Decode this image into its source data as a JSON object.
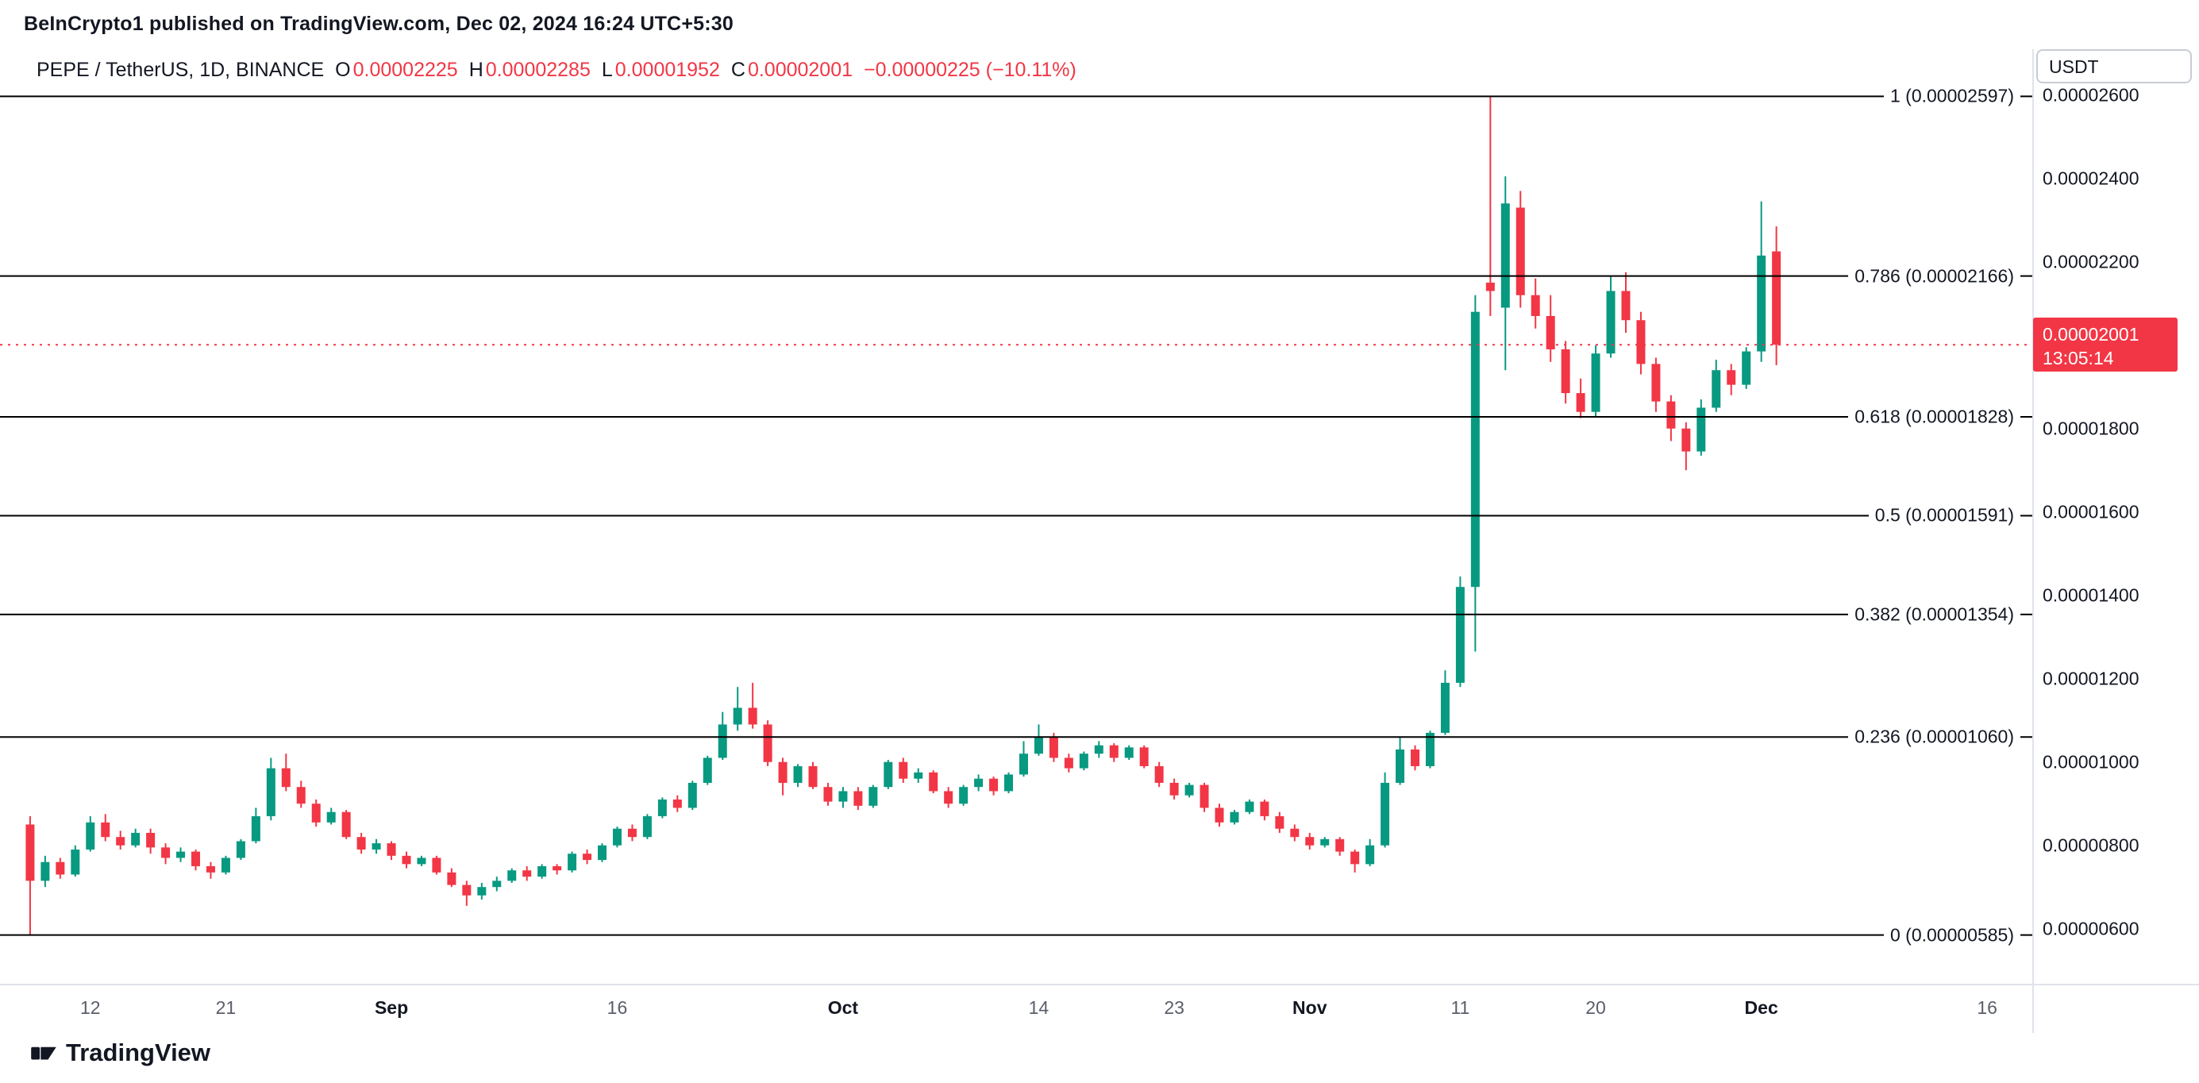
{
  "header": {
    "attribution": "BeInCrypto1 published on TradingView.com, Dec 02, 2024 16:24 UTC+5:30"
  },
  "legend": {
    "title": "PEPE / TetherUS, 1D, BINANCE",
    "open_label": "O",
    "open": "0.00002225",
    "high_label": "H",
    "high": "0.00002285",
    "low_label": "L",
    "low": "0.00001952",
    "close_label": "C",
    "close": "0.00002001",
    "change": "−0.00000225 (−10.11%)"
  },
  "price_axis": {
    "currency": "USDT"
  },
  "current_price": {
    "price": "0.00002001",
    "countdown": "13:05:14",
    "value": 2001
  },
  "logo": {
    "text": "TradingView"
  },
  "colors": {
    "up": "#089981",
    "down": "#F23645",
    "fib_line": "#000000",
    "axis_border": "#E0E3EB",
    "text": "#131722"
  },
  "chart_data": {
    "type": "candlestick",
    "symbol": "PEPE / TetherUS",
    "interval": "1D",
    "exchange": "BINANCE",
    "unit": 1e-08,
    "y_min": 468,
    "y_max": 2710,
    "x_slots": 135,
    "x_offset": 2,
    "y_ticks": [
      {
        "value": 2600,
        "label": "0.00002600"
      },
      {
        "value": 2400,
        "label": "0.00002400"
      },
      {
        "value": 2200,
        "label": "0.00002200"
      },
      {
        "value": 2000,
        "label": "0.00002000"
      },
      {
        "value": 1800,
        "label": "0.00001800"
      },
      {
        "value": 1600,
        "label": "0.00001600"
      },
      {
        "value": 1400,
        "label": "0.00001400"
      },
      {
        "value": 1200,
        "label": "0.00001200"
      },
      {
        "value": 1000,
        "label": "0.00001000"
      },
      {
        "value": 800,
        "label": "0.00000800"
      },
      {
        "value": 600,
        "label": "0.00000600"
      }
    ],
    "fib_levels": [
      {
        "ratio": "1",
        "price": 2597,
        "label": "1 (0.00002597)"
      },
      {
        "ratio": "0.786",
        "price": 2166,
        "label": "0.786 (0.00002166)"
      },
      {
        "ratio": "0.618",
        "price": 1828,
        "label": "0.618 (0.00001828)"
      },
      {
        "ratio": "0.5",
        "price": 1591,
        "label": "0.5 (0.00001591)"
      },
      {
        "ratio": "0.382",
        "price": 1354,
        "label": "0.382 (0.00001354)"
      },
      {
        "ratio": "0.236",
        "price": 1060,
        "label": "0.236 (0.00001060)"
      },
      {
        "ratio": "0",
        "price": 585,
        "label": "0 (0.00000585)"
      }
    ],
    "x_labels": [
      {
        "label": "12",
        "day": 4
      },
      {
        "label": "21",
        "day": 13
      },
      {
        "label": "Sep",
        "day": 24,
        "bold": true
      },
      {
        "label": "16",
        "day": 39
      },
      {
        "label": "Oct",
        "day": 54,
        "bold": true
      },
      {
        "label": "14",
        "day": 67
      },
      {
        "label": "23",
        "day": 76
      },
      {
        "label": "Nov",
        "day": 85,
        "bold": true
      },
      {
        "label": "11",
        "day": 95
      },
      {
        "label": "20",
        "day": 104
      },
      {
        "label": "Dec",
        "day": 115,
        "bold": true
      },
      {
        "label": "16",
        "day": 130
      }
    ],
    "candles": [
      [
        850,
        870,
        585,
        715
      ],
      [
        715,
        775,
        700,
        760
      ],
      [
        760,
        770,
        720,
        730
      ],
      [
        730,
        800,
        725,
        790
      ],
      [
        790,
        870,
        785,
        855
      ],
      [
        855,
        875,
        810,
        820
      ],
      [
        820,
        835,
        790,
        800
      ],
      [
        800,
        840,
        795,
        830
      ],
      [
        830,
        840,
        780,
        795
      ],
      [
        795,
        805,
        755,
        770
      ],
      [
        770,
        795,
        760,
        785
      ],
      [
        785,
        790,
        740,
        750
      ],
      [
        750,
        760,
        720,
        735
      ],
      [
        735,
        775,
        730,
        770
      ],
      [
        770,
        815,
        765,
        810
      ],
      [
        810,
        890,
        805,
        870
      ],
      [
        870,
        1010,
        860,
        985
      ],
      [
        985,
        1020,
        930,
        940
      ],
      [
        940,
        955,
        890,
        900
      ],
      [
        900,
        910,
        845,
        855
      ],
      [
        855,
        890,
        850,
        880
      ],
      [
        880,
        885,
        815,
        820
      ],
      [
        820,
        830,
        780,
        790
      ],
      [
        790,
        815,
        780,
        805
      ],
      [
        805,
        810,
        765,
        775
      ],
      [
        775,
        785,
        745,
        755
      ],
      [
        755,
        775,
        750,
        770
      ],
      [
        770,
        775,
        730,
        735
      ],
      [
        735,
        745,
        700,
        705
      ],
      [
        705,
        715,
        655,
        680
      ],
      [
        680,
        710,
        670,
        700
      ],
      [
        700,
        725,
        690,
        715
      ],
      [
        715,
        745,
        710,
        740
      ],
      [
        740,
        750,
        715,
        725
      ],
      [
        725,
        755,
        720,
        750
      ],
      [
        750,
        755,
        730,
        740
      ],
      [
        740,
        785,
        735,
        780
      ],
      [
        780,
        790,
        755,
        765
      ],
      [
        765,
        805,
        760,
        800
      ],
      [
        800,
        845,
        795,
        840
      ],
      [
        840,
        850,
        810,
        820
      ],
      [
        820,
        875,
        815,
        870
      ],
      [
        870,
        915,
        865,
        910
      ],
      [
        910,
        920,
        880,
        890
      ],
      [
        890,
        955,
        885,
        950
      ],
      [
        950,
        1015,
        945,
        1010
      ],
      [
        1010,
        1120,
        1005,
        1090
      ],
      [
        1090,
        1180,
        1075,
        1130
      ],
      [
        1130,
        1190,
        1080,
        1090
      ],
      [
        1090,
        1100,
        990,
        1000
      ],
      [
        1000,
        1010,
        920,
        950
      ],
      [
        950,
        995,
        940,
        990
      ],
      [
        990,
        1000,
        935,
        940
      ],
      [
        940,
        950,
        895,
        905
      ],
      [
        905,
        940,
        890,
        930
      ],
      [
        930,
        940,
        885,
        895
      ],
      [
        895,
        945,
        890,
        940
      ],
      [
        940,
        1005,
        935,
        1000
      ],
      [
        1000,
        1010,
        950,
        960
      ],
      [
        960,
        985,
        950,
        975
      ],
      [
        975,
        980,
        925,
        930
      ],
      [
        930,
        940,
        890,
        900
      ],
      [
        900,
        945,
        895,
        940
      ],
      [
        940,
        970,
        930,
        960
      ],
      [
        960,
        965,
        920,
        930
      ],
      [
        930,
        975,
        925,
        970
      ],
      [
        970,
        1050,
        965,
        1020
      ],
      [
        1020,
        1090,
        1015,
        1060
      ],
      [
        1060,
        1070,
        1000,
        1010
      ],
      [
        1010,
        1020,
        975,
        985
      ],
      [
        985,
        1025,
        980,
        1020
      ],
      [
        1020,
        1050,
        1010,
        1040
      ],
      [
        1040,
        1045,
        1000,
        1010
      ],
      [
        1010,
        1040,
        1005,
        1035
      ],
      [
        1035,
        1040,
        985,
        990
      ],
      [
        990,
        1000,
        940,
        950
      ],
      [
        950,
        960,
        910,
        920
      ],
      [
        920,
        950,
        915,
        945
      ],
      [
        945,
        950,
        880,
        890
      ],
      [
        890,
        900,
        845,
        855
      ],
      [
        855,
        885,
        850,
        880
      ],
      [
        880,
        910,
        875,
        905
      ],
      [
        905,
        910,
        860,
        870
      ],
      [
        870,
        880,
        830,
        840
      ],
      [
        840,
        850,
        810,
        820
      ],
      [
        820,
        830,
        790,
        800
      ],
      [
        800,
        820,
        795,
        815
      ],
      [
        815,
        820,
        775,
        785
      ],
      [
        785,
        790,
        735,
        755
      ],
      [
        755,
        815,
        750,
        800
      ],
      [
        800,
        975,
        795,
        950
      ],
      [
        950,
        1060,
        945,
        1030
      ],
      [
        1030,
        1040,
        980,
        990
      ],
      [
        990,
        1075,
        985,
        1070
      ],
      [
        1070,
        1220,
        1065,
        1190
      ],
      [
        1190,
        1445,
        1180,
        1420
      ],
      [
        1420,
        2120,
        1265,
        2080
      ],
      [
        2150,
        2597,
        2070,
        2130
      ],
      [
        2090,
        2405,
        1940,
        2340
      ],
      [
        2330,
        2370,
        2090,
        2120
      ],
      [
        2120,
        2160,
        2040,
        2070
      ],
      [
        2070,
        2120,
        1960,
        1990
      ],
      [
        1990,
        2010,
        1860,
        1885
      ],
      [
        1885,
        1920,
        1825,
        1840
      ],
      [
        1840,
        2000,
        1830,
        1980
      ],
      [
        1980,
        2165,
        1970,
        2130
      ],
      [
        2130,
        2175,
        2030,
        2060
      ],
      [
        2060,
        2080,
        1930,
        1955
      ],
      [
        1955,
        1970,
        1840,
        1865
      ],
      [
        1865,
        1880,
        1770,
        1800
      ],
      [
        1800,
        1815,
        1700,
        1745
      ],
      [
        1745,
        1870,
        1735,
        1850
      ],
      [
        1850,
        1965,
        1840,
        1940
      ],
      [
        1940,
        1955,
        1880,
        1905
      ],
      [
        1905,
        1995,
        1895,
        1985
      ],
      [
        1985,
        2345,
        1960,
        2215
      ],
      [
        2225,
        2285,
        1952,
        2001
      ]
    ]
  }
}
